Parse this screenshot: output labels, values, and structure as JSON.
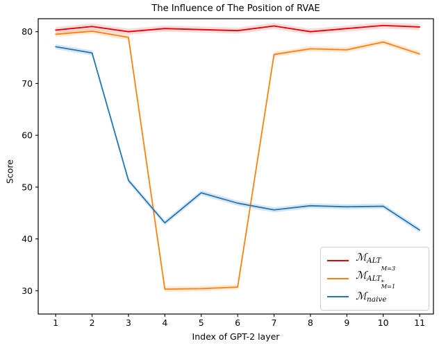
{
  "title": "The Influence of The Position of RVAE",
  "chart_data": {
    "type": "line",
    "title": "The Influence of The Position of RVAE",
    "xlabel": "Index of GPT-2 layer",
    "ylabel": "Score",
    "x": [
      1,
      2,
      3,
      4,
      5,
      6,
      7,
      8,
      9,
      10,
      11
    ],
    "xticks": [
      "1",
      "2",
      "3",
      "4",
      "5",
      "6",
      "7",
      "8",
      "9",
      "10",
      "11"
    ],
    "yticks": [
      "30",
      "40",
      "50",
      "60",
      "70",
      "80"
    ],
    "ytick_values": [
      30,
      40,
      50,
      60,
      70,
      80
    ],
    "xlim": [
      0.52,
      11.38
    ],
    "ylim": [
      25.5,
      82.5
    ],
    "grid": false,
    "legend_position": "lower right",
    "series": [
      {
        "name": "M_ALT_M=3",
        "label_parts": {
          "m": "ℳ",
          "sub": "ALT",
          "sup": "",
          "subsub": "M=3"
        },
        "color": "#e50000",
        "band_color": "rgba(229,0,0,0.14)",
        "band": 0.6,
        "values": [
          80.3,
          81.0,
          80.0,
          80.6,
          80.4,
          80.2,
          81.1,
          80.0,
          80.6,
          81.2,
          80.9
        ]
      },
      {
        "name": "M_ALT*_M=1",
        "label_parts": {
          "m": "ℳ",
          "sub": "ALT",
          "sup": "*",
          "subsub": "M=1"
        },
        "color": "#ff7f0e",
        "band_color": "rgba(255,127,14,0.18)",
        "band": 0.5,
        "values": [
          79.5,
          80.1,
          78.9,
          30.3,
          30.4,
          30.7,
          75.6,
          76.7,
          76.5,
          78.0,
          75.7
        ]
      },
      {
        "name": "M_naive",
        "label_parts": {
          "m": "ℳ",
          "sub": "naive",
          "sup": "",
          "subsub": ""
        },
        "color": "#1f77b4",
        "band_color": "rgba(31,119,180,0.18)",
        "band": 0.5,
        "values": [
          77.1,
          75.9,
          51.3,
          43.1,
          48.9,
          46.9,
          45.6,
          46.4,
          46.2,
          46.3,
          41.7
        ]
      }
    ]
  }
}
